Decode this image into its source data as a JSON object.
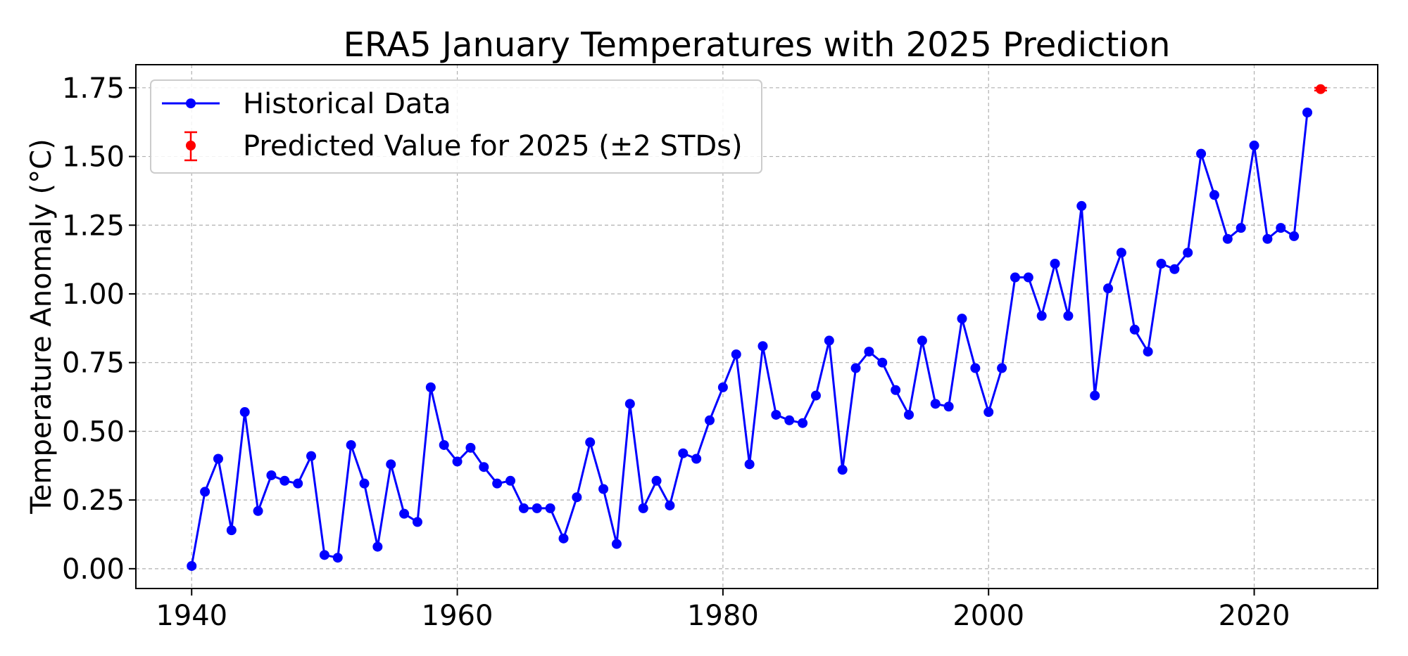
{
  "chart_data": {
    "type": "line",
    "title": "ERA5 January Temperatures with 2025 Prediction",
    "xlabel": "",
    "ylabel": "Temperature Anomaly (°C)",
    "xlim": [
      1935.8,
      2029.3
    ],
    "ylim": [
      -0.072,
      1.834
    ],
    "xticks": [
      1940,
      1960,
      1980,
      2000,
      2020
    ],
    "xtick_labels": [
      "1940",
      "1960",
      "1980",
      "2000",
      "2020"
    ],
    "yticks": [
      0,
      0.25,
      0.5,
      0.75,
      1.0,
      1.25,
      1.5,
      1.75
    ],
    "ytick_labels": [
      "0.00",
      "0.25",
      "0.50",
      "0.75",
      "1.00",
      "1.25",
      "1.50",
      "1.75"
    ],
    "grid": true,
    "legend_placement": "upper-left",
    "series": [
      {
        "name": "Historical Data",
        "color": "#0000ff",
        "marker": "circle",
        "x": [
          1940,
          1941,
          1942,
          1943,
          1944,
          1945,
          1946,
          1947,
          1948,
          1949,
          1950,
          1951,
          1952,
          1953,
          1954,
          1955,
          1956,
          1957,
          1958,
          1959,
          1960,
          1961,
          1962,
          1963,
          1964,
          1965,
          1966,
          1967,
          1968,
          1969,
          1970,
          1971,
          1972,
          1973,
          1974,
          1975,
          1976,
          1977,
          1978,
          1979,
          1980,
          1981,
          1982,
          1983,
          1984,
          1985,
          1986,
          1987,
          1988,
          1989,
          1990,
          1991,
          1992,
          1993,
          1994,
          1995,
          1996,
          1997,
          1998,
          1999,
          2000,
          2001,
          2002,
          2003,
          2004,
          2005,
          2006,
          2007,
          2008,
          2009,
          2010,
          2011,
          2012,
          2013,
          2014,
          2015,
          2016,
          2017,
          2018,
          2019,
          2020,
          2021,
          2022,
          2023,
          2024
        ],
        "y": [
          0.01,
          0.28,
          0.4,
          0.14,
          0.57,
          0.21,
          0.34,
          0.32,
          0.31,
          0.41,
          0.05,
          0.04,
          0.45,
          0.31,
          0.08,
          0.38,
          0.2,
          0.17,
          0.66,
          0.45,
          0.39,
          0.44,
          0.37,
          0.31,
          0.32,
          0.22,
          0.22,
          0.22,
          0.11,
          0.26,
          0.46,
          0.29,
          0.09,
          0.6,
          0.22,
          0.32,
          0.23,
          0.42,
          0.4,
          0.54,
          0.66,
          0.78,
          0.38,
          0.81,
          0.56,
          0.54,
          0.53,
          0.63,
          0.83,
          0.36,
          0.73,
          0.79,
          0.75,
          0.65,
          0.56,
          0.83,
          0.6,
          0.59,
          0.91,
          0.73,
          0.57,
          0.73,
          1.06,
          1.06,
          0.92,
          1.11,
          0.92,
          1.32,
          0.63,
          1.02,
          1.15,
          0.87,
          0.79,
          1.11,
          1.09,
          1.15,
          1.51,
          1.36,
          1.2,
          1.24,
          1.54,
          1.2,
          1.24,
          1.21,
          1.66
        ]
      },
      {
        "name": "Predicted Value for 2025 (±2 STDs)",
        "color": "#ff0000",
        "marker": "circle-errorbar",
        "x": [
          2025
        ],
        "y": [
          1.745
        ],
        "error": [
          0.005
        ]
      }
    ]
  }
}
